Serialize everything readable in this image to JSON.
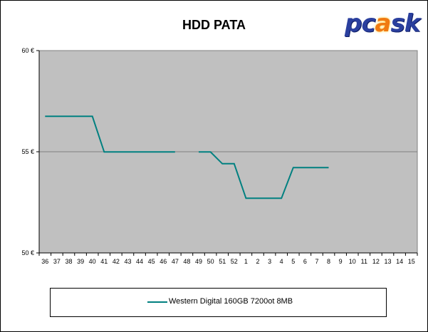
{
  "chart_data": {
    "type": "line",
    "title": "HDD PATA",
    "xlabel": "",
    "ylabel": "",
    "ylim": [
      50,
      60
    ],
    "y_ticks": [
      "50 €",
      "55 €",
      "60 €"
    ],
    "y_tick_values": [
      50,
      55,
      60
    ],
    "categories": [
      "36",
      "37",
      "38",
      "39",
      "40",
      "41",
      "42",
      "43",
      "44",
      "45",
      "46",
      "47",
      "48",
      "49",
      "50",
      "51",
      "52",
      "1",
      "2",
      "3",
      "4",
      "5",
      "6",
      "7",
      "8",
      "9",
      "10",
      "11",
      "12",
      "13",
      "14",
      "15"
    ],
    "series": [
      {
        "name": "Western Digital 160GB 7200ot 8MB",
        "color": "#008080",
        "values": [
          56.75,
          56.75,
          56.75,
          56.75,
          56.75,
          54.99,
          54.99,
          54.99,
          54.99,
          54.99,
          54.99,
          54.99,
          null,
          54.99,
          54.99,
          54.41,
          54.41,
          52.7,
          52.7,
          52.7,
          52.7,
          54.22,
          54.22,
          54.22,
          54.22,
          null,
          null,
          null,
          null,
          null,
          null,
          null
        ]
      }
    ],
    "gridlines": [
      55
    ],
    "grid": "horizontal",
    "plot_background": "#c0c0c0",
    "legend_position": "bottom"
  },
  "logo": {
    "text_before": "pc",
    "text_flame": "a",
    "text_after": "sk"
  },
  "icons": {
    "logo": "pcask-logo"
  }
}
